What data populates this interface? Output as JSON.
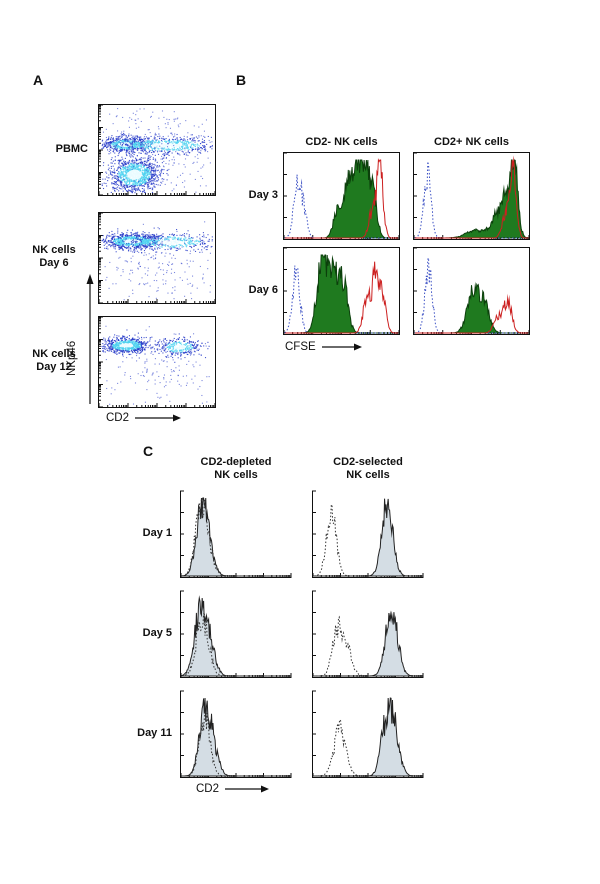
{
  "panelA": {
    "label": "A",
    "plots": [
      {
        "label": "PBMC"
      },
      {
        "label": "NK cells\nDay 6"
      },
      {
        "label": "NK cells\nDay 12"
      }
    ],
    "y_axis_label": "NKp46",
    "x_axis_label": "CD2"
  },
  "panelB": {
    "label": "B",
    "col_headers": [
      "CD2- NK cells",
      "CD2+ NK cells"
    ],
    "row_labels": [
      "Day 3",
      "Day 6"
    ],
    "x_axis_label": "CFSE"
  },
  "panelC": {
    "label": "C",
    "col_headers": [
      "CD2-depleted\nNK cells",
      "CD2-selected\nNK cells"
    ],
    "row_labels": [
      "Day 1",
      "Day 5",
      "Day 11"
    ],
    "x_axis_label": "CD2"
  },
  "colors": {
    "outline_black": "#111111",
    "histogram_green_fill": "#1f7a1f",
    "histogram_green_stroke": "#0b3f0b",
    "histogram_red": "#cc2020",
    "histogram_blue_dotted": "#3a4fc4",
    "histogram_gray_fill": "#d4dde4",
    "histogram_gray_stroke": "#222222",
    "scatter_blue": "#2438c8",
    "scatter_cyan": "#4fd2f0",
    "scatter_core": "#eafcff"
  },
  "chart_data": [
    {
      "id": "pbmc",
      "type": "scatter",
      "frame": "box",
      "xlabel": "CD2",
      "ylabel": "NKp46",
      "xscale": "log",
      "yscale": "log",
      "clusters": [
        {
          "cx": 0.3,
          "cy": 0.22,
          "sx": 0.11,
          "sy": 0.1,
          "n": 1200,
          "heat": true
        },
        {
          "cx": 0.22,
          "cy": 0.57,
          "sx": 0.1,
          "sy": 0.045,
          "n": 600,
          "heat": true
        },
        {
          "cx": 0.58,
          "cy": 0.56,
          "sx": 0.23,
          "sy": 0.05,
          "n": 650,
          "heat": true
        },
        {
          "cx": 0.5,
          "cy": 0.52,
          "sx": 0.3,
          "sy": 0.3,
          "n": 350,
          "heat": false
        }
      ]
    },
    {
      "id": "nk-day6",
      "type": "scatter",
      "frame": "box",
      "xlabel": "CD2",
      "ylabel": "NKp46",
      "xscale": "log",
      "yscale": "log",
      "clusters": [
        {
          "cx": 0.28,
          "cy": 0.7,
          "sx": 0.13,
          "sy": 0.045,
          "n": 900,
          "heat": true
        },
        {
          "cx": 0.62,
          "cy": 0.69,
          "sx": 0.2,
          "sy": 0.05,
          "n": 420,
          "heat": true
        },
        {
          "cx": 0.5,
          "cy": 0.4,
          "sx": 0.28,
          "sy": 0.22,
          "n": 190,
          "heat": false
        }
      ]
    },
    {
      "id": "nk-day12",
      "type": "scatter",
      "frame": "box",
      "xlabel": "CD2",
      "ylabel": "NKp46",
      "xscale": "log",
      "yscale": "log",
      "clusters": [
        {
          "cx": 0.23,
          "cy": 0.7,
          "sx": 0.1,
          "sy": 0.045,
          "n": 800,
          "heat": true
        },
        {
          "cx": 0.7,
          "cy": 0.68,
          "sx": 0.09,
          "sy": 0.05,
          "n": 330,
          "heat": true
        },
        {
          "cx": 0.5,
          "cy": 0.42,
          "sx": 0.28,
          "sy": 0.22,
          "n": 150,
          "heat": false
        }
      ]
    },
    {
      "id": "b-day3-cd2neg",
      "type": "histogram",
      "frame": "box",
      "xlabel": "CFSE",
      "series": [
        {
          "name": "green-filled",
          "style": "filled",
          "fill": "#1f7a1f",
          "stroke": "#0b3f0b",
          "peaks": [
            {
              "c": 0.46,
              "w": 0.035,
              "h": 0.3
            },
            {
              "c": 0.55,
              "w": 0.038,
              "h": 0.62
            },
            {
              "c": 0.63,
              "w": 0.038,
              "h": 0.82
            },
            {
              "c": 0.71,
              "w": 0.038,
              "h": 0.8
            },
            {
              "c": 0.78,
              "w": 0.034,
              "h": 0.55
            }
          ]
        },
        {
          "name": "blue-dotted",
          "style": "dotted",
          "stroke": "#3a4fc4",
          "peaks": [
            {
              "c": 0.11,
              "w": 0.032,
              "h": 0.75
            },
            {
              "c": 0.17,
              "w": 0.028,
              "h": 0.28
            }
          ]
        },
        {
          "name": "red-line",
          "style": "line",
          "stroke": "#cc2020",
          "peaks": [
            {
              "c": 0.84,
              "w": 0.028,
              "h": 0.92
            },
            {
              "c": 0.77,
              "w": 0.03,
              "h": 0.32
            }
          ]
        }
      ]
    },
    {
      "id": "b-day3-cd2pos",
      "type": "histogram",
      "frame": "box",
      "xlabel": "CFSE",
      "series": [
        {
          "name": "green-filled",
          "style": "filled",
          "fill": "#1f7a1f",
          "stroke": "#0b3f0b",
          "peaks": [
            {
              "c": 0.88,
              "w": 0.032,
              "h": 0.92
            },
            {
              "c": 0.81,
              "w": 0.036,
              "h": 0.5
            },
            {
              "c": 0.72,
              "w": 0.045,
              "h": 0.28
            },
            {
              "c": 0.55,
              "w": 0.09,
              "h": 0.1
            }
          ]
        },
        {
          "name": "blue-dotted",
          "style": "dotted",
          "stroke": "#3a4fc4",
          "peaks": [
            {
              "c": 0.11,
              "w": 0.032,
              "h": 0.8
            }
          ]
        },
        {
          "name": "red-line",
          "style": "line",
          "stroke": "#cc2020",
          "peaks": [
            {
              "c": 0.87,
              "w": 0.027,
              "h": 0.88
            },
            {
              "c": 0.8,
              "w": 0.03,
              "h": 0.3
            }
          ]
        }
      ]
    },
    {
      "id": "b-day6-cd2neg",
      "type": "histogram",
      "frame": "box",
      "xlabel": "CFSE",
      "series": [
        {
          "name": "green-filled",
          "style": "filled",
          "fill": "#1f7a1f",
          "stroke": "#0b3f0b",
          "peaks": [
            {
              "c": 0.4,
              "w": 0.065,
              "h": 0.88
            },
            {
              "c": 0.31,
              "w": 0.04,
              "h": 0.5
            },
            {
              "c": 0.52,
              "w": 0.04,
              "h": 0.5
            }
          ]
        },
        {
          "name": "blue-dotted",
          "style": "dotted",
          "stroke": "#3a4fc4",
          "peaks": [
            {
              "c": 0.1,
              "w": 0.032,
              "h": 0.82
            }
          ]
        },
        {
          "name": "red-line",
          "style": "line",
          "stroke": "#cc2020",
          "peaks": [
            {
              "c": 0.8,
              "w": 0.032,
              "h": 0.72
            },
            {
              "c": 0.72,
              "w": 0.032,
              "h": 0.4
            },
            {
              "c": 0.87,
              "w": 0.028,
              "h": 0.42
            }
          ]
        }
      ]
    },
    {
      "id": "b-day6-cd2pos",
      "type": "histogram",
      "frame": "box",
      "xlabel": "CFSE",
      "series": [
        {
          "name": "green-filled",
          "style": "filled",
          "fill": "#1f7a1f",
          "stroke": "#0b3f0b",
          "peaks": [
            {
              "c": 0.52,
              "w": 0.055,
              "h": 0.52
            },
            {
              "c": 0.62,
              "w": 0.045,
              "h": 0.3
            }
          ]
        },
        {
          "name": "blue-dotted",
          "style": "dotted",
          "stroke": "#3a4fc4",
          "peaks": [
            {
              "c": 0.12,
              "w": 0.032,
              "h": 0.85
            }
          ]
        },
        {
          "name": "red-line",
          "style": "line",
          "stroke": "#cc2020",
          "peaks": [
            {
              "c": 0.82,
              "w": 0.035,
              "h": 0.42
            },
            {
              "c": 0.73,
              "w": 0.035,
              "h": 0.2
            }
          ]
        }
      ]
    },
    {
      "id": "c-day1-depleted",
      "type": "histogram",
      "frame": "L",
      "xlabel": "CD2",
      "series": [
        {
          "name": "gray-filled",
          "style": "filled",
          "fill": "#d4dde4",
          "stroke": "#222222",
          "peaks": [
            {
              "c": 0.18,
              "w": 0.05,
              "h": 0.85
            },
            {
              "c": 0.25,
              "w": 0.05,
              "h": 0.3
            }
          ]
        },
        {
          "name": "black-dotted",
          "style": "dotted",
          "stroke": "#333333",
          "peaks": [
            {
              "c": 0.17,
              "w": 0.05,
              "h": 0.8
            },
            {
              "c": 0.24,
              "w": 0.05,
              "h": 0.3
            }
          ]
        }
      ]
    },
    {
      "id": "c-day1-selected",
      "type": "histogram",
      "frame": "L",
      "xlabel": "CD2",
      "series": [
        {
          "name": "gray-filled",
          "style": "filled",
          "fill": "#d4dde4",
          "stroke": "#222222",
          "peaks": [
            {
              "c": 0.68,
              "w": 0.05,
              "h": 0.92
            }
          ]
        },
        {
          "name": "black-dotted",
          "style": "dotted",
          "stroke": "#333333",
          "peaks": [
            {
              "c": 0.16,
              "w": 0.045,
              "h": 0.8
            }
          ]
        }
      ]
    },
    {
      "id": "c-day5-depleted",
      "type": "histogram",
      "frame": "L",
      "xlabel": "CD2",
      "series": [
        {
          "name": "gray-filled",
          "style": "filled",
          "fill": "#d4dde4",
          "stroke": "#222222",
          "peaks": [
            {
              "c": 0.17,
              "w": 0.055,
              "h": 0.8
            },
            {
              "c": 0.26,
              "w": 0.05,
              "h": 0.35
            }
          ]
        },
        {
          "name": "black-dotted",
          "style": "dotted",
          "stroke": "#333333",
          "peaks": [
            {
              "c": 0.19,
              "w": 0.055,
              "h": 0.75
            }
          ]
        }
      ]
    },
    {
      "id": "c-day5-selected",
      "type": "histogram",
      "frame": "L",
      "xlabel": "CD2",
      "series": [
        {
          "name": "gray-filled",
          "style": "filled",
          "fill": "#d4dde4",
          "stroke": "#222222",
          "peaks": [
            {
              "c": 0.72,
              "w": 0.055,
              "h": 0.85
            }
          ]
        },
        {
          "name": "black-dotted",
          "style": "dotted",
          "stroke": "#333333",
          "peaks": [
            {
              "c": 0.27,
              "w": 0.06,
              "h": 0.5
            },
            {
              "c": 0.2,
              "w": 0.04,
              "h": 0.3
            }
          ]
        }
      ]
    },
    {
      "id": "c-day11-depleted",
      "type": "histogram",
      "frame": "L",
      "xlabel": "CD2",
      "series": [
        {
          "name": "gray-filled",
          "style": "filled",
          "fill": "#d4dde4",
          "stroke": "#222222",
          "peaks": [
            {
              "c": 0.21,
              "w": 0.05,
              "h": 0.82
            },
            {
              "c": 0.29,
              "w": 0.05,
              "h": 0.3
            }
          ]
        },
        {
          "name": "black-dotted",
          "style": "dotted",
          "stroke": "#333333",
          "peaks": [
            {
              "c": 0.21,
              "w": 0.05,
              "h": 0.72
            }
          ]
        }
      ]
    },
    {
      "id": "c-day11-selected",
      "type": "histogram",
      "frame": "L",
      "xlabel": "CD2",
      "series": [
        {
          "name": "gray-filled",
          "style": "filled",
          "fill": "#d4dde4",
          "stroke": "#222222",
          "peaks": [
            {
              "c": 0.72,
              "w": 0.055,
              "h": 0.82
            },
            {
              "c": 0.64,
              "w": 0.04,
              "h": 0.3
            }
          ]
        },
        {
          "name": "black-dotted",
          "style": "dotted",
          "stroke": "#333333",
          "peaks": [
            {
              "c": 0.24,
              "w": 0.055,
              "h": 0.6
            }
          ]
        }
      ]
    }
  ]
}
